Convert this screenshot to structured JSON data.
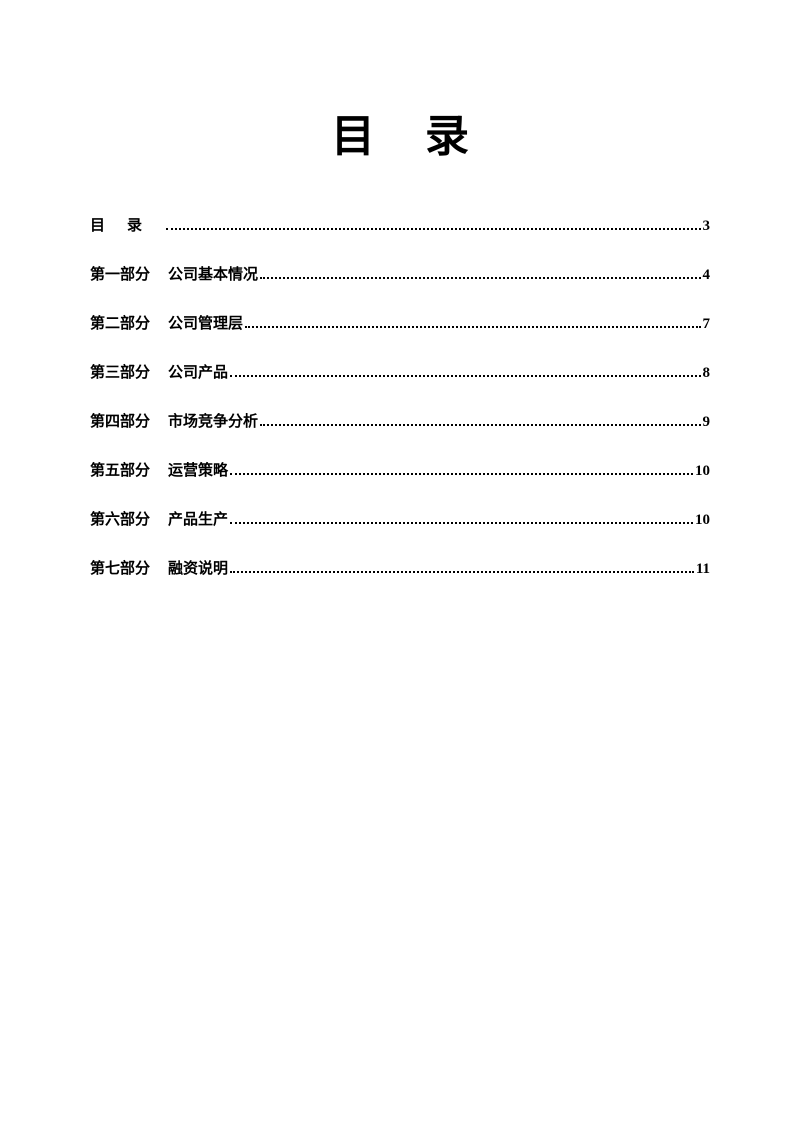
{
  "document": {
    "title": "目录",
    "background_color": "#ffffff",
    "text_color": "#000000",
    "title_fontsize": 44,
    "entry_fontsize": 15,
    "entries": [
      {
        "part": "目录",
        "section": "",
        "page": "3",
        "is_first": true
      },
      {
        "part": "第一部分",
        "section": "公司基本情况",
        "page": "4",
        "is_first": false
      },
      {
        "part": "第二部分",
        "section": "公司管理层",
        "page": "7",
        "is_first": false
      },
      {
        "part": "第三部分",
        "section": "公司产品",
        "page": "8",
        "is_first": false
      },
      {
        "part": "第四部分",
        "section": "市场竞争分析",
        "page": "9",
        "is_first": false
      },
      {
        "part": "第五部分",
        "section": "运营策略",
        "page": "10",
        "is_first": false
      },
      {
        "part": "第六部分",
        "section": "产品生产",
        "page": "10",
        "is_first": false
      },
      {
        "part": "第七部分",
        "section": "融资说明",
        "page": "11",
        "is_first": false
      }
    ]
  }
}
